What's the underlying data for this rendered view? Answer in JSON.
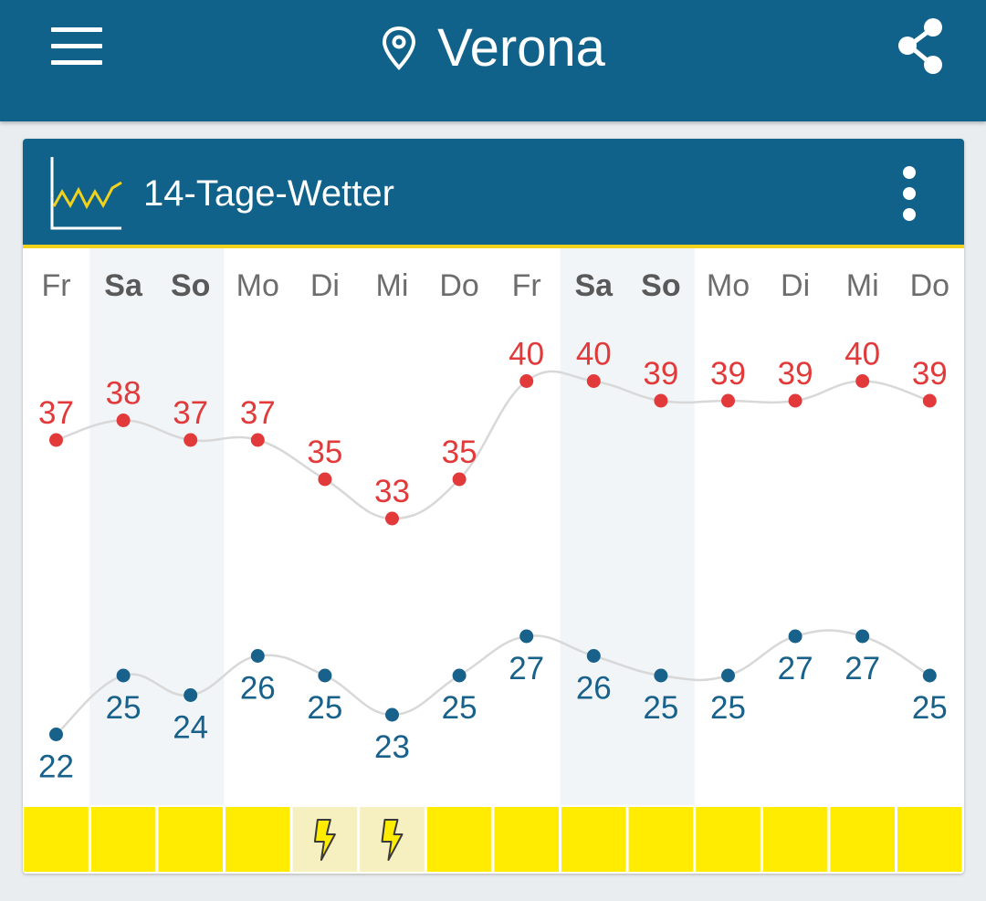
{
  "app": {
    "city": "Verona",
    "icons": {
      "menu": "hamburger-menu-icon",
      "location": "map-pin-icon",
      "share": "share-icon"
    }
  },
  "card": {
    "title": "14-Tage-Wetter",
    "icons": {
      "chart": "line-chart-icon",
      "more": "more-vert-icon"
    }
  },
  "colors": {
    "primary": "#11628b",
    "accent": "#f2d21a",
    "high": "#e23a3a",
    "low": "#17618a",
    "weekend_bg": "#f1f5f8",
    "sun_cell": "#ffec00",
    "storm_cell": "#f6efc0"
  },
  "chart_data": {
    "type": "line",
    "categories": [
      "Fr",
      "Sa",
      "So",
      "Mo",
      "Di",
      "Mi",
      "Do",
      "Fr",
      "Sa",
      "So",
      "Mo",
      "Di",
      "Mi",
      "Do"
    ],
    "weekend": [
      false,
      true,
      true,
      false,
      false,
      false,
      false,
      false,
      true,
      true,
      false,
      false,
      false,
      false
    ],
    "series": [
      {
        "values": [
          37,
          38,
          37,
          37,
          35,
          33,
          35,
          40,
          40,
          39,
          39,
          39,
          40,
          39
        ]
      },
      {
        "values": [
          22,
          25,
          24,
          26,
          25,
          23,
          25,
          27,
          26,
          25,
          25,
          27,
          27,
          25
        ]
      }
    ],
    "ylim": [
      20,
      42
    ],
    "grid": false,
    "weather": [
      "sun",
      "sun",
      "sun",
      "sun",
      "storm",
      "storm",
      "sun",
      "sun",
      "sun",
      "sun",
      "sun",
      "sun",
      "sun",
      "sun"
    ]
  }
}
